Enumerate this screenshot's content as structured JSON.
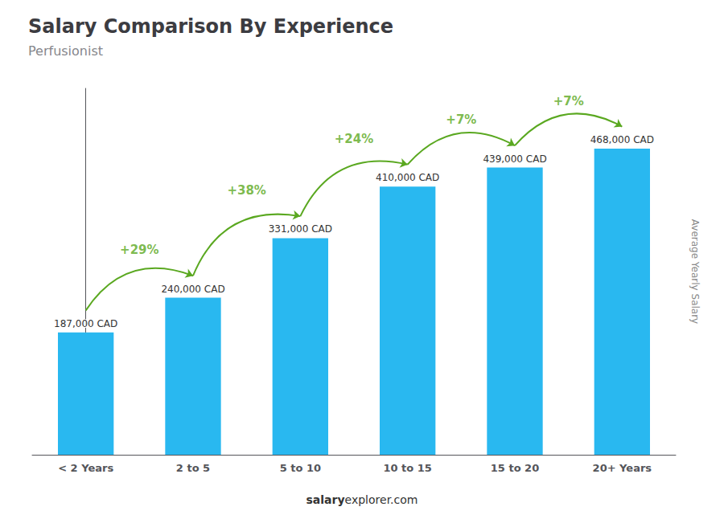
{
  "chart_data": {
    "type": "bar",
    "title": "Salary Comparison By Experience",
    "subtitle": "Perfusionist",
    "y_label": "Average Yearly Salary",
    "categories": [
      "< 2 Years",
      "2 to 5",
      "5 to 10",
      "10 to 15",
      "15 to 20",
      "20+ Years"
    ],
    "values": [
      187000,
      240000,
      331000,
      410000,
      439000,
      468000
    ],
    "value_labels": [
      "187,000 CAD",
      "240,000 CAD",
      "331,000 CAD",
      "410,000 CAD",
      "439,000 CAD",
      "468,000 CAD"
    ],
    "data_labels": true,
    "color": "#29b8f0",
    "ylim": [
      0,
      560000
    ],
    "tick_labels": "x",
    "grid": false,
    "annotations": [
      "+29%",
      "+38%",
      "+24%",
      "+7%",
      "+7%"
    ],
    "footer": [
      "salary",
      "explorer.com"
    ]
  }
}
